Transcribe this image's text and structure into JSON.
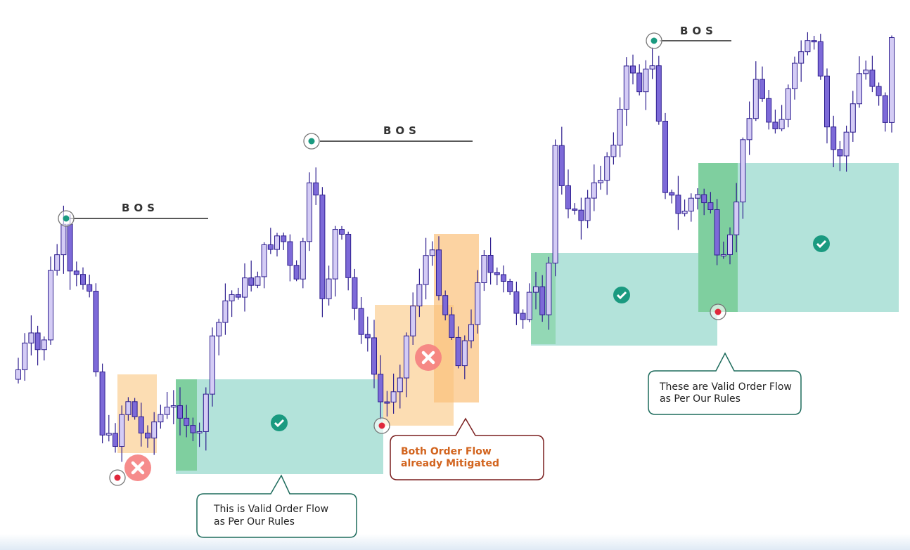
{
  "bos_labels": [
    "BOS",
    "BOS",
    "BOS"
  ],
  "callouts": [
    {
      "lines": [
        "This is Valid Order Flow",
        "as Per Our Rules"
      ]
    },
    {
      "lines": [
        "Both Order Flow",
        "already Mitigated"
      ]
    },
    {
      "lines": [
        "These are Valid Order Flow",
        "as Per Our Rules"
      ]
    }
  ]
}
